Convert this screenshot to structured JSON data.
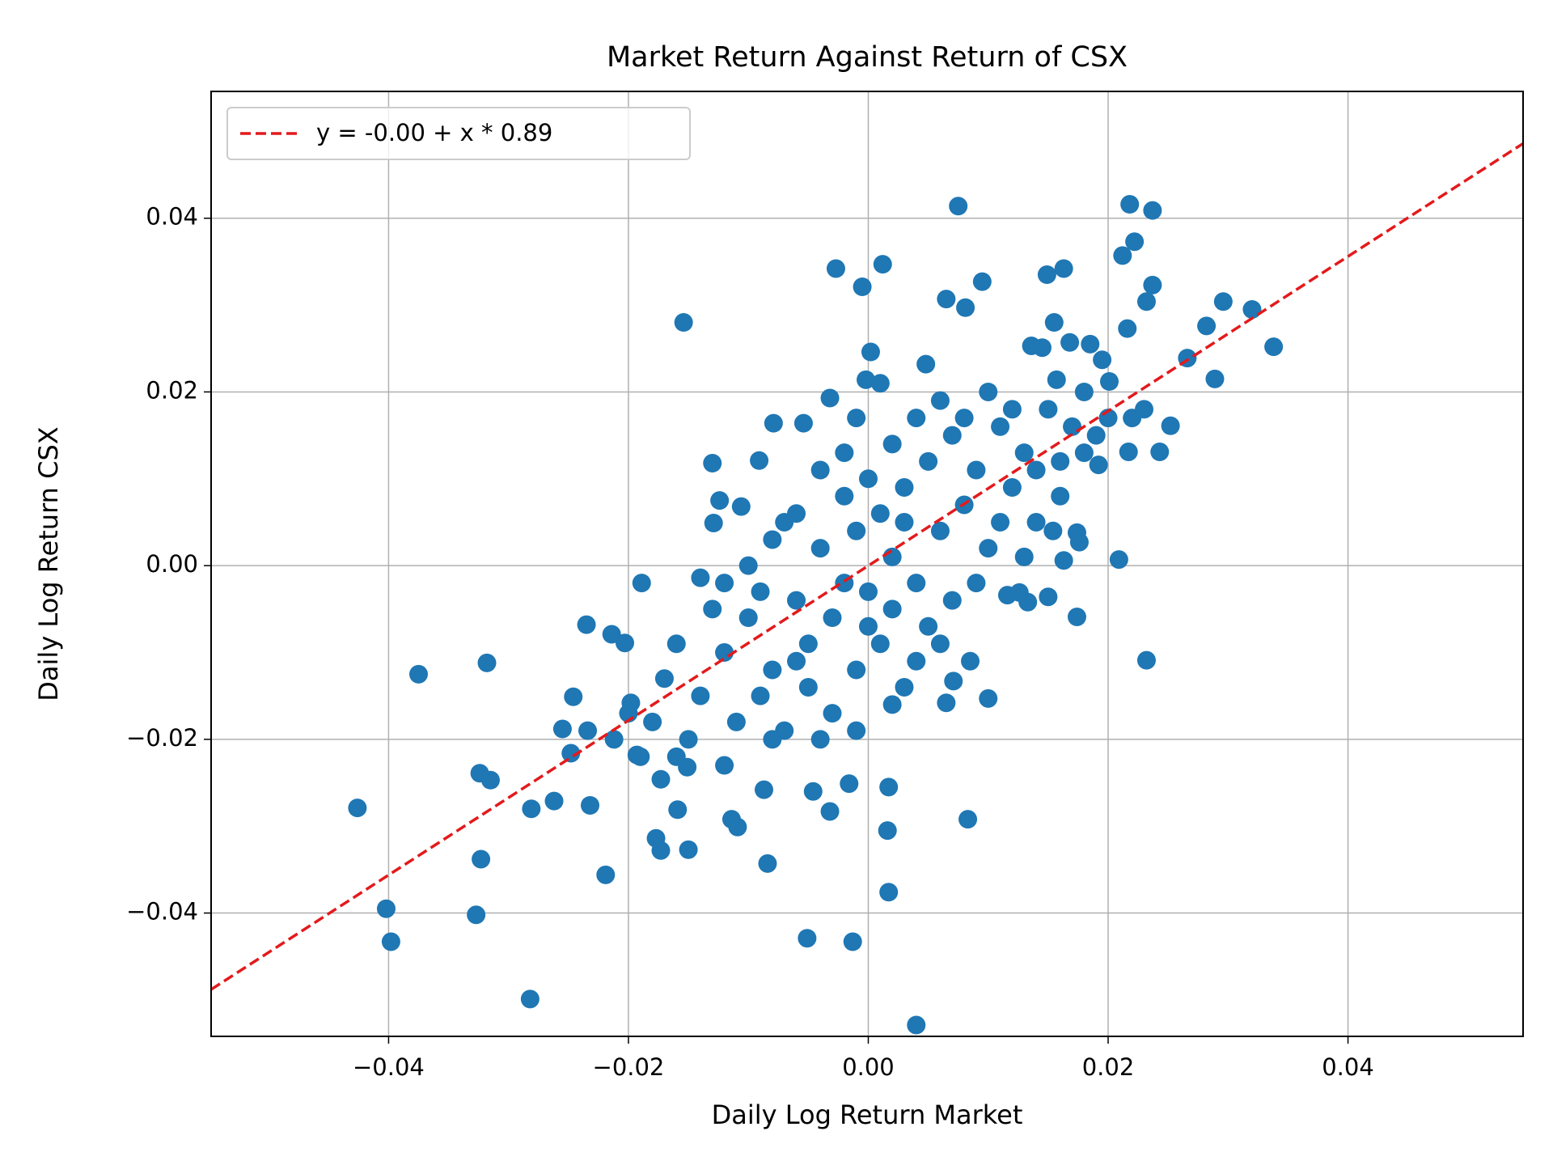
{
  "chart_data": {
    "type": "scatter",
    "title": "Market Return Against Return of CSX",
    "xlabel": "Daily Log Return Market",
    "ylabel": "Daily Log Return CSX",
    "color": "#1f77b4",
    "x": [
      0.0075,
      0.0218,
      0.0237,
      0.0222,
      0.0212,
      0.0237,
      0.0232,
      0.0095,
      0.0149,
      0.0163,
      0.0012,
      -0.0027,
      -0.0005,
      0.0065,
      0.0081,
      -0.0154,
      0.0155,
      0.0216,
      0.0282,
      0.0296,
      0.032,
      0.0338,
      0.0266,
      0.0289,
      0.0252,
      0.0243,
      0.0217,
      0.0192,
      0.0209,
      0.0232,
      0.0174,
      0.015,
      0.0133,
      0.0116,
      0.01,
      0.0085,
      0.0071,
      0.0065,
      0.0083,
      0.0017,
      0.0016,
      0.0017,
      0.004,
      -0.0013,
      -0.0051,
      -0.0016,
      -0.0032,
      -0.0046,
      -0.0084,
      -0.0087,
      -0.0109,
      -0.0114,
      -0.015,
      -0.0159,
      -0.0173,
      -0.0177,
      -0.0219,
      -0.0232,
      -0.0262,
      -0.0281,
      -0.0282,
      -0.0315,
      -0.0324,
      -0.0323,
      -0.0327,
      -0.0402,
      -0.0398,
      -0.0426,
      -0.0375,
      -0.0318,
      -0.0235,
      -0.0214,
      -0.0203,
      -0.0189,
      -0.0246,
      -0.0255,
      -0.0234,
      -0.0248,
      -0.0212,
      -0.0198,
      -0.0193,
      -0.0173,
      -0.0151,
      -0.014,
      -0.013,
      -0.0124,
      -0.0129,
      -0.0106,
      -0.0091,
      -0.0079,
      -0.0054,
      -0.0032,
      0.0002,
      -0.0002,
      0.0048,
      0.0136,
      0.0145,
      0.0168,
      0.0185,
      0.0195,
      0.0201,
      0.0157,
      0.0176,
      0.0163,
      0.0154,
      0.0174,
      0.0126,
      -0.012,
      -0.01,
      -0.008,
      -0.006,
      -0.005,
      -0.004,
      -0.003,
      -0.002,
      -0.001,
      0.0,
      0.001,
      0.002,
      0.003,
      0.004,
      0.005,
      0.006,
      0.007,
      0.008,
      0.009,
      0.01,
      0.011,
      0.012,
      0.013,
      0.014,
      0.015,
      0.016,
      0.017,
      0.018,
      0.019,
      -0.014,
      -0.016,
      -0.017,
      -0.018,
      -0.015,
      -0.013,
      -0.011,
      -0.009,
      -0.007,
      -0.005,
      -0.003,
      -0.001,
      0.001,
      0.003,
      0.005,
      0.007,
      0.002,
      0.0,
      -0.002,
      -0.004,
      -0.006,
      -0.008,
      -0.01,
      -0.012,
      0.004,
      0.006,
      0.008,
      0.01,
      0.012,
      -0.001,
      0.001,
      0.009,
      0.011,
      0.013,
      -0.02,
      -0.019,
      -0.016,
      -0.012,
      -0.008,
      -0.004,
      -0.001,
      0.002,
      0.004,
      0.006,
      -0.007,
      -0.009,
      0.003,
      -0.002,
      0.014,
      0.016,
      0.018,
      0.02,
      0.022,
      0.023,
      -0.006,
      0.0,
      0.002
    ],
    "values": [
      0.0414,
      0.0416,
      0.0409,
      0.0373,
      0.0357,
      0.0323,
      0.0304,
      0.0327,
      0.0335,
      0.0342,
      0.0347,
      0.0342,
      0.0321,
      0.0307,
      0.0297,
      0.028,
      0.028,
      0.0273,
      0.0276,
      0.0304,
      0.0295,
      0.0252,
      0.0239,
      0.0215,
      0.0161,
      0.0131,
      0.0131,
      0.0116,
      0.0007,
      -0.0109,
      -0.0059,
      -0.0036,
      -0.0042,
      -0.0034,
      -0.0153,
      -0.011,
      -0.0133,
      -0.0158,
      -0.0292,
      -0.0255,
      -0.0305,
      -0.0376,
      -0.0529,
      -0.0433,
      -0.0429,
      -0.0251,
      -0.0283,
      -0.026,
      -0.0343,
      -0.0258,
      -0.0301,
      -0.0292,
      -0.0327,
      -0.0281,
      -0.0328,
      -0.0314,
      -0.0356,
      -0.0276,
      -0.0271,
      -0.028,
      -0.0499,
      -0.0247,
      -0.0239,
      -0.0338,
      -0.0402,
      -0.0395,
      -0.0433,
      -0.0279,
      -0.0125,
      -0.0112,
      -0.0068,
      -0.0079,
      -0.0089,
      -0.002,
      -0.0151,
      -0.0188,
      -0.019,
      -0.0216,
      -0.02,
      -0.0158,
      -0.0218,
      -0.0246,
      -0.0232,
      -0.0014,
      0.0118,
      0.0075,
      0.0049,
      0.0068,
      0.0121,
      0.0164,
      0.0164,
      0.0193,
      0.0246,
      0.0214,
      0.0232,
      0.0253,
      0.0251,
      0.0257,
      0.0255,
      0.0237,
      0.0212,
      0.0214,
      0.0027,
      0.0006,
      0.004,
      0.0038,
      -0.0031,
      -0.01,
      -0.006,
      -0.012,
      -0.004,
      -0.009,
      0.002,
      -0.006,
      -0.002,
      0.004,
      -0.003,
      0.006,
      0.001,
      0.009,
      -0.002,
      0.012,
      0.004,
      0.015,
      0.007,
      0.011,
      0.002,
      0.016,
      0.009,
      0.013,
      0.005,
      0.018,
      0.012,
      0.016,
      0.02,
      0.015,
      -0.015,
      -0.009,
      -0.013,
      -0.018,
      -0.02,
      -0.005,
      -0.018,
      -0.015,
      -0.019,
      -0.014,
      -0.017,
      -0.012,
      -0.009,
      -0.014,
      -0.007,
      -0.004,
      0.014,
      0.01,
      0.008,
      0.011,
      0.006,
      0.003,
      0.0,
      -0.002,
      0.017,
      0.019,
      0.017,
      0.02,
      0.018,
      0.017,
      0.021,
      -0.002,
      0.005,
      0.001,
      -0.017,
      -0.022,
      -0.022,
      -0.023,
      -0.02,
      -0.02,
      -0.019,
      -0.016,
      -0.011,
      -0.009,
      0.005,
      -0.003,
      0.005,
      0.013,
      0.011,
      0.008,
      0.013,
      0.017,
      0.017,
      0.018,
      -0.011,
      -0.007,
      -0.005
    ],
    "fit": {
      "name": "y = -0.00 + x * 0.89",
      "color": "#e31a1c",
      "x": [
        -0.0548,
        0.0546
      ],
      "values": [
        -0.0488,
        0.0486
      ]
    },
    "xlim": [
      -0.0548,
      0.0546
    ],
    "ylim": [
      -0.0542,
      0.0546
    ],
    "xticks": [
      {
        "value": -0.04,
        "label": "−0.04"
      },
      {
        "value": -0.02,
        "label": "−0.02"
      },
      {
        "value": 0,
        "label": "0.00"
      },
      0.02,
      0.04
    ],
    "yticks": [
      {
        "value": -0.04,
        "label": "−0.04"
      },
      {
        "value": -0.02,
        "label": "−0.02"
      },
      {
        "value": 0,
        "label": "0.00"
      },
      0.02,
      0.04
    ],
    "grid": true,
    "legend": "upper left"
  }
}
